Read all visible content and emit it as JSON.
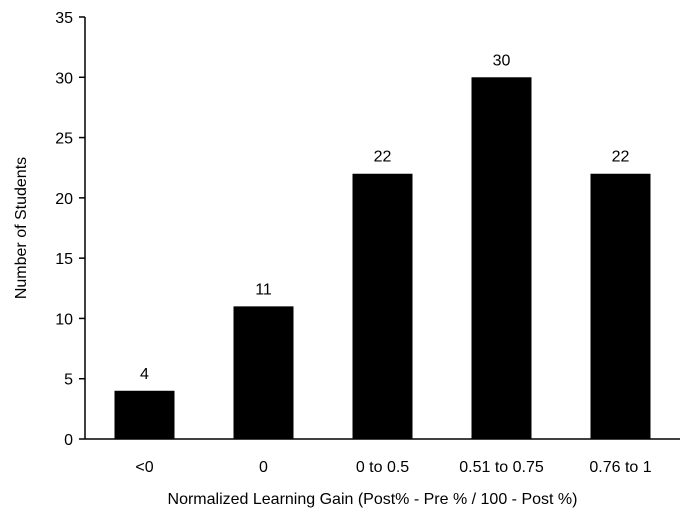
{
  "chart_data": {
    "type": "bar",
    "categories": [
      "<0",
      "0",
      "0 to 0.5",
      "0.51 to 0.75",
      "0.76 to 1"
    ],
    "values": [
      4,
      11,
      22,
      30,
      22
    ],
    "data_labels": [
      "4",
      "11",
      "22",
      "30",
      "22"
    ],
    "xlabel": "Normalized Learning Gain (Post% - Pre % / 100 - Post %)",
    "ylabel": "Number of Students",
    "ylim": [
      0,
      35
    ],
    "yticks": [
      0,
      5,
      10,
      15,
      20,
      25,
      30,
      35
    ],
    "ytick_labels": [
      "0",
      "5",
      "10",
      "15",
      "20",
      "25",
      "30",
      "35"
    ],
    "grid": false,
    "legend": "none",
    "colors": {
      "bar": "#000000",
      "axis": "#000000",
      "background": "#ffffff"
    }
  }
}
